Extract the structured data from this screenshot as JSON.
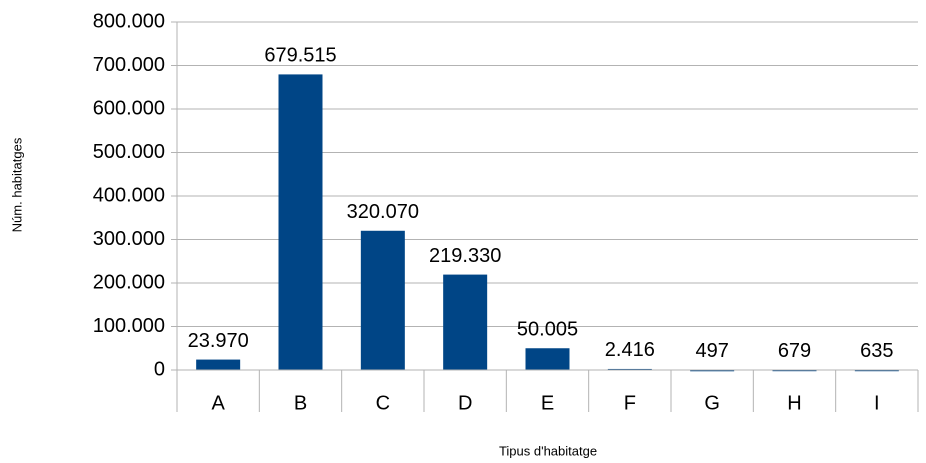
{
  "chart_data": {
    "type": "bar",
    "x_label": "Tipus d'habitatge",
    "y_label": "Núm. habitatges",
    "categories": [
      "A",
      "B",
      "C",
      "D",
      "E",
      "F",
      "G",
      "H",
      "I"
    ],
    "values": [
      23970,
      679515,
      320070,
      219330,
      50005,
      2416,
      497,
      679,
      635
    ],
    "value_labels": [
      "23.970",
      "679.515",
      "320.070",
      "219.330",
      "50.005",
      "2.416",
      "497",
      "679",
      "635"
    ],
    "color": "#004586",
    "ylim": [
      0,
      800000
    ],
    "yticks": [
      0,
      {
        "value": 100000,
        "label": "100.000"
      },
      {
        "value": 200000,
        "label": "200.000"
      },
      {
        "value": 300000,
        "label": "300.000"
      },
      {
        "value": 400000,
        "label": "400.000"
      },
      {
        "value": 500000,
        "label": "500.000"
      },
      {
        "value": 600000,
        "label": "600.000"
      },
      {
        "value": 700000,
        "label": "700.000"
      },
      {
        "value": 800000,
        "label": "800.000"
      }
    ],
    "grid": true
  }
}
